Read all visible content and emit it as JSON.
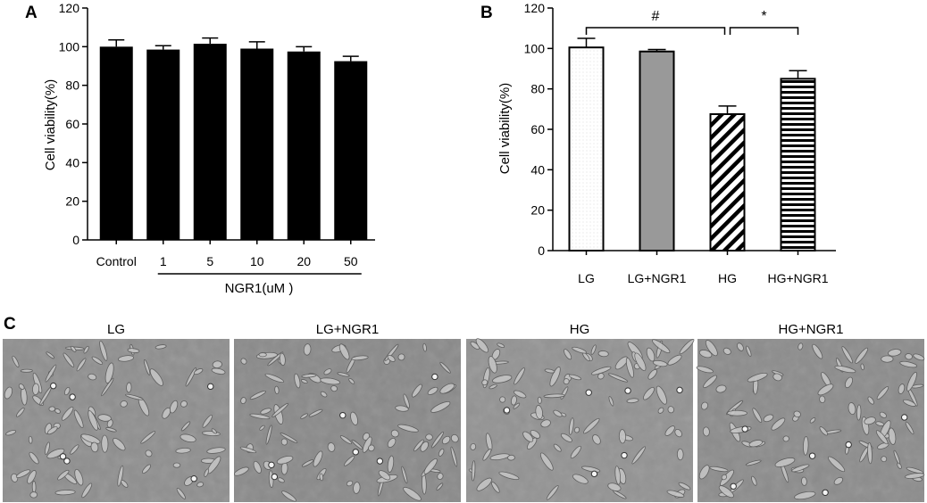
{
  "panels": {
    "a": {
      "letter": "A"
    },
    "b": {
      "letter": "B"
    },
    "c": {
      "letter": "C",
      "images": [
        {
          "label": "LG",
          "tone": "#8f8f8f"
        },
        {
          "label": "LG+NGR1",
          "tone": "#8a8a8a"
        },
        {
          "label": "HG",
          "tone": "#939393"
        },
        {
          "label": "HG+NGR1",
          "tone": "#8c8c8c"
        }
      ]
    }
  },
  "chart_data": [
    {
      "panel": "A",
      "type": "bar",
      "categories": [
        "Control",
        "1",
        "5",
        "10",
        "20",
        "50"
      ],
      "values": [
        100,
        98.5,
        101.5,
        99,
        97.5,
        92.5
      ],
      "errors": [
        3.5,
        2,
        3,
        3.5,
        2.5,
        2.5
      ],
      "xlabel": "",
      "group_label": "NGR1(uM )",
      "ylabel": "Cell viability(%)",
      "ylim": [
        0,
        120
      ],
      "yticks": [
        0,
        20,
        40,
        60,
        80,
        100,
        120
      ],
      "bar_color": "#000000",
      "grid": false
    },
    {
      "panel": "B",
      "type": "bar",
      "categories": [
        "LG",
        "LG+NGR1",
        "HG",
        "HG+NGR1"
      ],
      "values": [
        100.5,
        98.5,
        67.5,
        85
      ],
      "errors": [
        4.5,
        1,
        4,
        4
      ],
      "fills": [
        "dotted-white",
        "gray",
        "diagonal-hatch",
        "horizontal-stripes"
      ],
      "xlabel": "",
      "ylabel": "Cell viability(%)",
      "ylim": [
        0,
        120
      ],
      "yticks": [
        0,
        20,
        40,
        60,
        80,
        100,
        120
      ],
      "grid": false,
      "significance": [
        {
          "from": "LG",
          "to": "HG",
          "label": "#"
        },
        {
          "from": "HG",
          "to": "HG+NGR1",
          "label": "*"
        }
      ]
    }
  ]
}
